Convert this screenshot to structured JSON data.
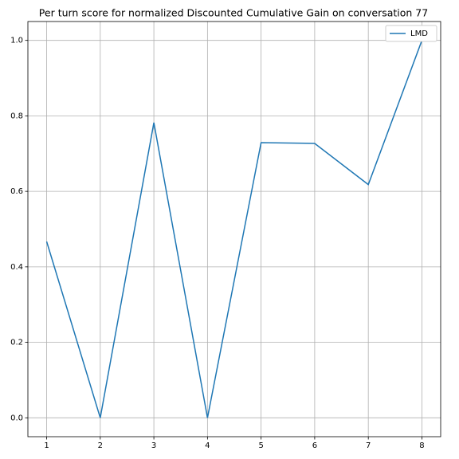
{
  "chart_data": {
    "type": "line",
    "title": "Per turn score for normalized Discounted Cumulative Gain on conversation 77",
    "x": [
      1,
      2,
      3,
      4,
      5,
      6,
      7,
      8
    ],
    "series": [
      {
        "name": "LMD",
        "color": "#1f77b4",
        "values": [
          0.467,
          0.0,
          0.782,
          0.0,
          0.729,
          0.727,
          0.618,
          1.0
        ]
      }
    ],
    "xlim": [
      0.65,
      8.35
    ],
    "xticks": [
      1,
      2,
      3,
      4,
      5,
      6,
      7,
      8
    ],
    "ylim": [
      -0.05,
      1.05
    ],
    "yticks": [
      {
        "value": 0,
        "label": "0.0"
      },
      {
        "value": 0.2,
        "label": "0.2"
      },
      {
        "value": 0.4,
        "label": "0.4"
      },
      {
        "value": 0.6,
        "label": "0.6"
      },
      {
        "value": 0.8,
        "label": "0.8"
      },
      {
        "value": 1,
        "label": "1.0"
      }
    ],
    "grid": true,
    "legend": "upper right"
  }
}
